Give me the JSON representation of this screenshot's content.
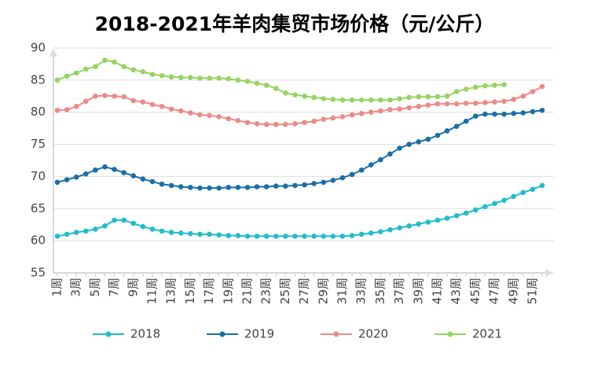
{
  "chart_data": {
    "type": "line",
    "title": "2018-2021年羊肉集贸市场价格（元/公斤）",
    "categories": [
      "1周",
      null,
      "3周",
      null,
      "5周",
      null,
      "7周",
      null,
      "9周",
      null,
      "11周",
      null,
      "13周",
      null,
      "15周",
      null,
      "17周",
      null,
      "19周",
      null,
      "21周",
      null,
      "23周",
      null,
      "25周",
      null,
      "27周",
      null,
      "29周",
      null,
      "31周",
      null,
      "33周",
      null,
      "35周",
      null,
      "37周",
      null,
      "39周",
      null,
      "41周",
      null,
      "43周",
      null,
      "45周",
      null,
      "47周",
      null,
      "49周",
      null,
      "51周",
      null
    ],
    "series": [
      {
        "name": "2018",
        "color": "#22bccb",
        "values": [
          60.7,
          61.0,
          61.3,
          61.5,
          61.8,
          62.3,
          63.2,
          63.2,
          62.7,
          62.2,
          61.8,
          61.5,
          61.3,
          61.2,
          61.1,
          61.0,
          61.0,
          60.9,
          60.8,
          60.8,
          60.7,
          60.7,
          60.7,
          60.7,
          60.7,
          60.7,
          60.7,
          60.7,
          60.7,
          60.7,
          60.7,
          60.8,
          61.0,
          61.2,
          61.4,
          61.7,
          62.0,
          62.3,
          62.6,
          62.9,
          63.2,
          63.5,
          63.9,
          64.3,
          64.8,
          65.3,
          65.8,
          66.3,
          66.9,
          67.5,
          68.0,
          68.6
        ]
      },
      {
        "name": "2019",
        "color": "#1a6fa6",
        "values": [
          69.1,
          69.5,
          69.9,
          70.4,
          71.0,
          71.5,
          71.1,
          70.6,
          70.1,
          69.6,
          69.2,
          68.8,
          68.6,
          68.4,
          68.3,
          68.2,
          68.2,
          68.2,
          68.3,
          68.3,
          68.3,
          68.4,
          68.4,
          68.5,
          68.5,
          68.6,
          68.7,
          68.9,
          69.1,
          69.4,
          69.8,
          70.3,
          71.0,
          71.8,
          72.6,
          73.5,
          74.4,
          75.0,
          75.4,
          75.8,
          76.4,
          77.1,
          77.8,
          78.6,
          79.4,
          79.7,
          79.7,
          79.7,
          79.8,
          79.9,
          80.1,
          80.3
        ]
      },
      {
        "name": "2020",
        "color": "#ec8a87",
        "values": [
          80.3,
          80.4,
          80.9,
          81.7,
          82.5,
          82.6,
          82.5,
          82.4,
          81.8,
          81.6,
          81.2,
          80.9,
          80.5,
          80.2,
          79.9,
          79.6,
          79.5,
          79.3,
          79.0,
          78.7,
          78.4,
          78.2,
          78.1,
          78.1,
          78.1,
          78.2,
          78.4,
          78.6,
          78.9,
          79.1,
          79.3,
          79.6,
          79.8,
          80.0,
          80.2,
          80.4,
          80.5,
          80.7,
          80.9,
          81.1,
          81.3,
          81.3,
          81.3,
          81.4,
          81.4,
          81.5,
          81.6,
          81.7,
          82.0,
          82.5,
          83.2,
          84.0
        ]
      },
      {
        "name": "2021",
        "color": "#96d461",
        "values": [
          85.0,
          85.6,
          86.1,
          86.7,
          87.1,
          88.1,
          87.8,
          87.1,
          86.6,
          86.3,
          85.9,
          85.7,
          85.5,
          85.4,
          85.4,
          85.3,
          85.3,
          85.3,
          85.2,
          85.0,
          84.8,
          84.5,
          84.2,
          83.7,
          83.0,
          82.7,
          82.5,
          82.3,
          82.1,
          82.0,
          81.9,
          81.9,
          81.9,
          81.9,
          81.9,
          81.9,
          82.1,
          82.3,
          82.4,
          82.4,
          82.4,
          82.5,
          83.2,
          83.6,
          83.9,
          84.1,
          84.2,
          84.3,
          null,
          null,
          null,
          null
        ]
      }
    ],
    "ylim": [
      55,
      90
    ],
    "yticks": [
      55,
      60,
      65,
      70,
      75,
      80,
      85,
      90
    ],
    "grid": true,
    "legend": "bottom"
  }
}
